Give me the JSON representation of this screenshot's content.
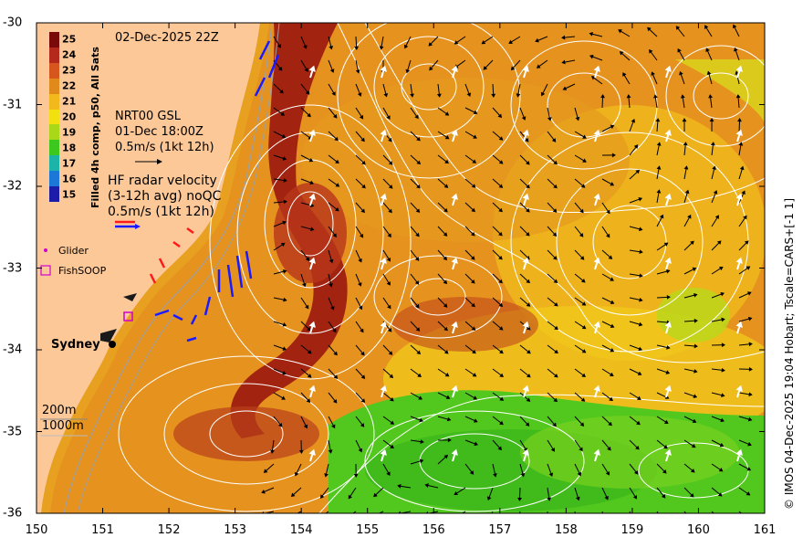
{
  "map": {
    "date": "02-Dec-2025 22Z",
    "x_ticks": [
      "150",
      "151",
      "152",
      "153",
      "154",
      "155",
      "156",
      "157",
      "158",
      "159",
      "160",
      "161"
    ],
    "y_ticks": [
      "-30",
      "-31",
      "-32",
      "-33",
      "-34",
      "-35",
      "-36"
    ],
    "lon_range": [
      150,
      161
    ],
    "lat_range": [
      -36,
      -30
    ],
    "colorbar": {
      "title": "Filled 4h comp, p50, All Sats",
      "ticks": [
        "25",
        "24",
        "23",
        "22",
        "21",
        "20",
        "19",
        "18",
        "17",
        "16",
        "15"
      ],
      "colors": [
        "#7a0a0a",
        "#b5281c",
        "#d6561e",
        "#e08a1c",
        "#f2b81c",
        "#f2e010",
        "#a8d818",
        "#3cc81e",
        "#1cb4a8",
        "#1c78d8",
        "#1c1ca8"
      ]
    },
    "nrt": {
      "title": "NRT00 GSL",
      "time": "01-Dec 18:00Z",
      "scale": "0.5m/s (1kt 12h)"
    },
    "hf": {
      "line1": "HF radar velocity",
      "line2": "(3-12h avg) noQC",
      "scale": "0.5m/s (1kt 12h)"
    },
    "legend": {
      "glider": "Glider",
      "fishsoop": "FishSOOP"
    },
    "city": "Sydney",
    "isobaths": {
      "a": "200m",
      "b": "1000m"
    },
    "copyright": "© IMOS 04-Dec-2025 19:04 Hobart; Tscale=CARS+[-1 1]",
    "colors": {
      "land": "#fcc898",
      "warm_core": "#9a1c0c",
      "shelf_sst": "#e8a020",
      "cool_sst": "#3cc81e",
      "contour": "#ffffff",
      "radar": "#1a1aff",
      "radar_red": "#ff1a1a"
    }
  }
}
